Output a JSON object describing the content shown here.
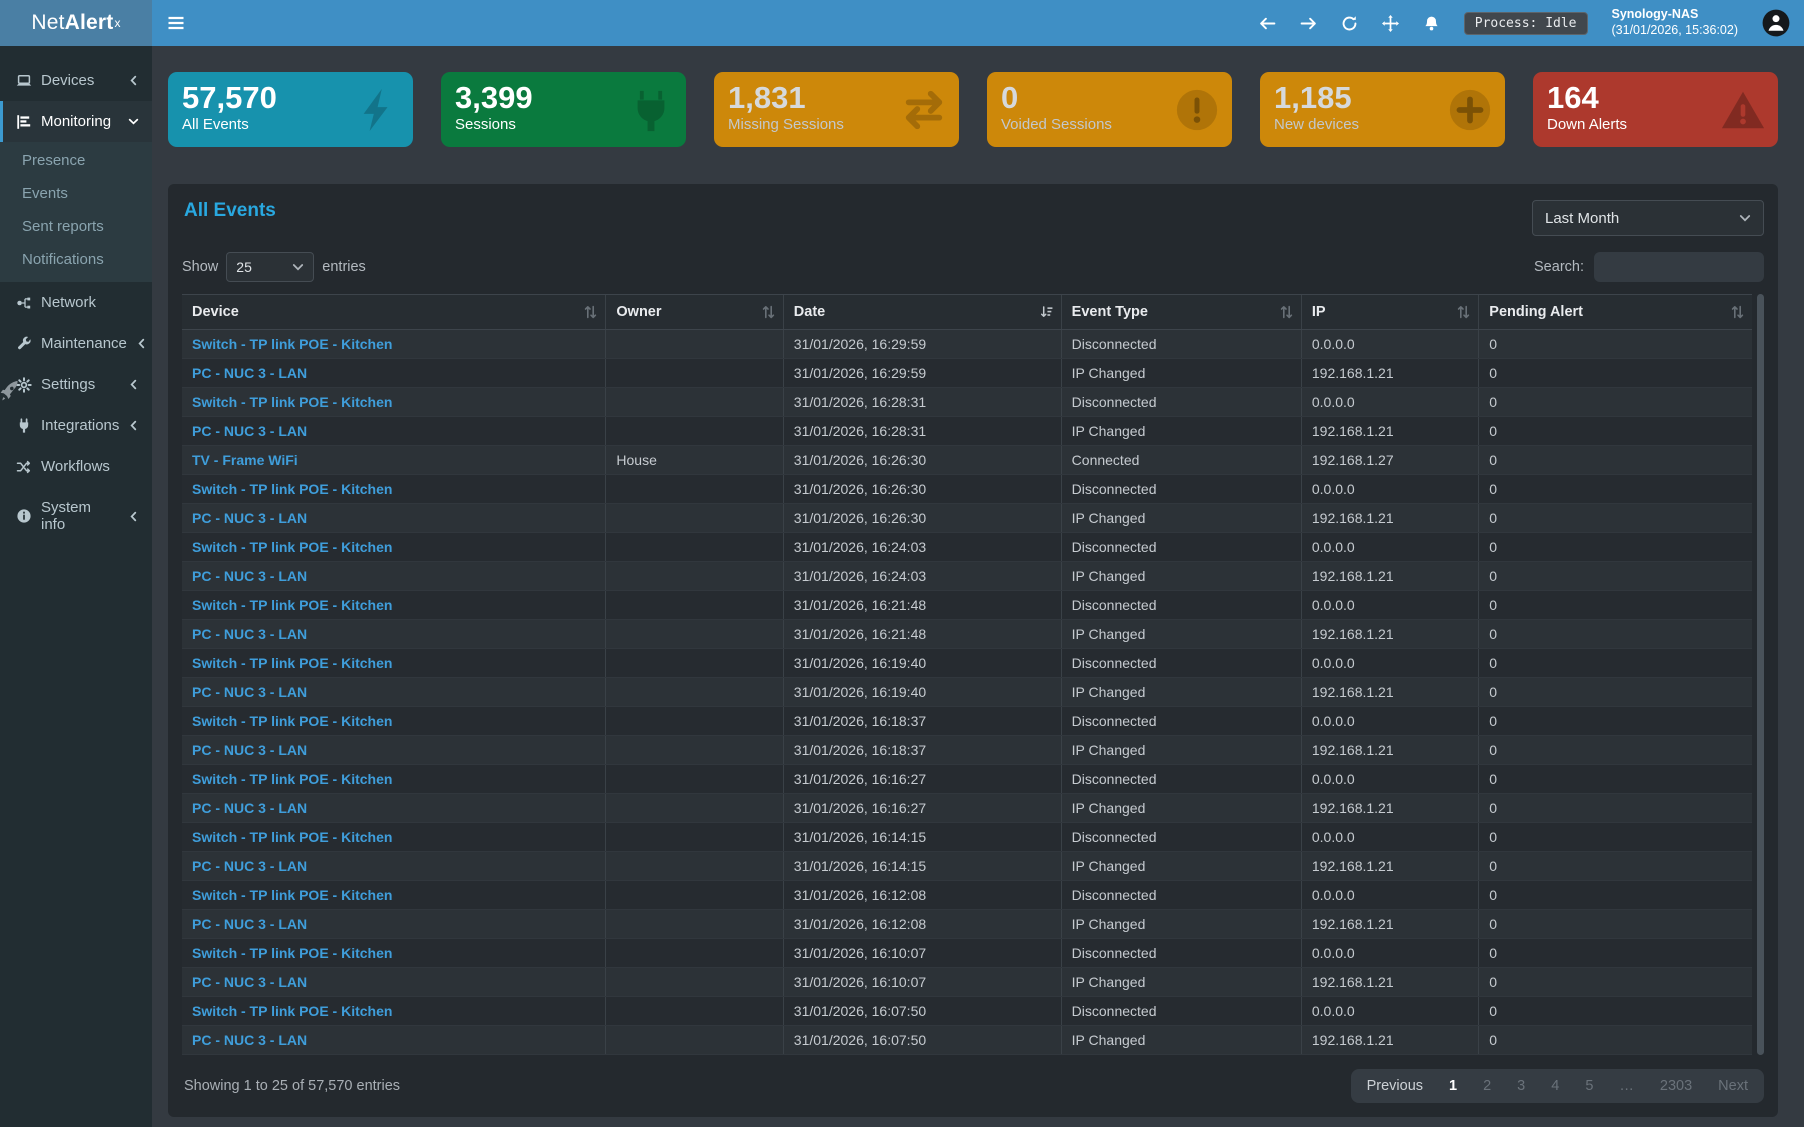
{
  "brand": {
    "prefix": "Net",
    "bold": "Alert",
    "sup": "x"
  },
  "header": {
    "process_badge": "Process: Idle",
    "host": "Synology-NAS",
    "timestamp": "(31/01/2026, 15:36:02)"
  },
  "sidebar": {
    "items": [
      {
        "label": "Devices"
      },
      {
        "label": "Monitoring",
        "children": [
          {
            "label": "Presence"
          },
          {
            "label": "Events"
          },
          {
            "label": "Sent reports"
          },
          {
            "label": "Notifications"
          }
        ]
      },
      {
        "label": "Network"
      },
      {
        "label": "Maintenance"
      },
      {
        "label": "Settings"
      },
      {
        "label": "Integrations"
      },
      {
        "label": "Workflows"
      },
      {
        "label": "System info"
      }
    ]
  },
  "cards": [
    {
      "value": "57,570",
      "label": "All Events",
      "color": "#1792ad",
      "icon": "bolt-icon"
    },
    {
      "value": "3,399",
      "label": "Sessions",
      "color": "#0a7a3e",
      "icon": "plug-icon"
    },
    {
      "value": "1,831",
      "label": "Missing Sessions",
      "color": "#cd880a",
      "icon": "exchange-icon"
    },
    {
      "value": "0",
      "label": "Voided Sessions",
      "color": "#cd880a",
      "icon": "exclamation-circle-icon"
    },
    {
      "value": "1,185",
      "label": "New devices",
      "color": "#cd880a",
      "icon": "plus-circle-icon"
    },
    {
      "value": "164",
      "label": "Down Alerts",
      "color": "#ad392d",
      "icon": "warning-triangle-icon"
    }
  ],
  "panel": {
    "title": "All Events",
    "period_selected": "Last Month",
    "length_menu": {
      "show": "Show",
      "selected": "25",
      "entries": "entries"
    },
    "search_label": "Search:",
    "search_value": "",
    "table": {
      "columns": [
        "Device",
        "Owner",
        "Date",
        "Event Type",
        "IP",
        "Pending Alert"
      ],
      "sorted_column": "Date",
      "rows": [
        [
          "Switch - TP link POE - Kitchen",
          "",
          "31/01/2026, 16:29:59",
          "Disconnected",
          "0.0.0.0",
          "0"
        ],
        [
          "PC - NUC 3 - LAN",
          "",
          "31/01/2026, 16:29:59",
          "IP Changed",
          "192.168.1.21",
          "0"
        ],
        [
          "Switch - TP link POE - Kitchen",
          "",
          "31/01/2026, 16:28:31",
          "Disconnected",
          "0.0.0.0",
          "0"
        ],
        [
          "PC - NUC 3 - LAN",
          "",
          "31/01/2026, 16:28:31",
          "IP Changed",
          "192.168.1.21",
          "0"
        ],
        [
          "TV - Frame WiFi",
          "House",
          "31/01/2026, 16:26:30",
          "Connected",
          "192.168.1.27",
          "0"
        ],
        [
          "Switch - TP link POE - Kitchen",
          "",
          "31/01/2026, 16:26:30",
          "Disconnected",
          "0.0.0.0",
          "0"
        ],
        [
          "PC - NUC 3 - LAN",
          "",
          "31/01/2026, 16:26:30",
          "IP Changed",
          "192.168.1.21",
          "0"
        ],
        [
          "Switch - TP link POE - Kitchen",
          "",
          "31/01/2026, 16:24:03",
          "Disconnected",
          "0.0.0.0",
          "0"
        ],
        [
          "PC - NUC 3 - LAN",
          "",
          "31/01/2026, 16:24:03",
          "IP Changed",
          "192.168.1.21",
          "0"
        ],
        [
          "Switch - TP link POE - Kitchen",
          "",
          "31/01/2026, 16:21:48",
          "Disconnected",
          "0.0.0.0",
          "0"
        ],
        [
          "PC - NUC 3 - LAN",
          "",
          "31/01/2026, 16:21:48",
          "IP Changed",
          "192.168.1.21",
          "0"
        ],
        [
          "Switch - TP link POE - Kitchen",
          "",
          "31/01/2026, 16:19:40",
          "Disconnected",
          "0.0.0.0",
          "0"
        ],
        [
          "PC - NUC 3 - LAN",
          "",
          "31/01/2026, 16:19:40",
          "IP Changed",
          "192.168.1.21",
          "0"
        ],
        [
          "Switch - TP link POE - Kitchen",
          "",
          "31/01/2026, 16:18:37",
          "Disconnected",
          "0.0.0.0",
          "0"
        ],
        [
          "PC - NUC 3 - LAN",
          "",
          "31/01/2026, 16:18:37",
          "IP Changed",
          "192.168.1.21",
          "0"
        ],
        [
          "Switch - TP link POE - Kitchen",
          "",
          "31/01/2026, 16:16:27",
          "Disconnected",
          "0.0.0.0",
          "0"
        ],
        [
          "PC - NUC 3 - LAN",
          "",
          "31/01/2026, 16:16:27",
          "IP Changed",
          "192.168.1.21",
          "0"
        ],
        [
          "Switch - TP link POE - Kitchen",
          "",
          "31/01/2026, 16:14:15",
          "Disconnected",
          "0.0.0.0",
          "0"
        ],
        [
          "PC - NUC 3 - LAN",
          "",
          "31/01/2026, 16:14:15",
          "IP Changed",
          "192.168.1.21",
          "0"
        ],
        [
          "Switch - TP link POE - Kitchen",
          "",
          "31/01/2026, 16:12:08",
          "Disconnected",
          "0.0.0.0",
          "0"
        ],
        [
          "PC - NUC 3 - LAN",
          "",
          "31/01/2026, 16:12:08",
          "IP Changed",
          "192.168.1.21",
          "0"
        ],
        [
          "Switch - TP link POE - Kitchen",
          "",
          "31/01/2026, 16:10:07",
          "Disconnected",
          "0.0.0.0",
          "0"
        ],
        [
          "PC - NUC 3 - LAN",
          "",
          "31/01/2026, 16:10:07",
          "IP Changed",
          "192.168.1.21",
          "0"
        ],
        [
          "Switch - TP link POE - Kitchen",
          "",
          "31/01/2026, 16:07:50",
          "Disconnected",
          "0.0.0.0",
          "0"
        ],
        [
          "PC - NUC 3 - LAN",
          "",
          "31/01/2026, 16:07:50",
          "IP Changed",
          "192.168.1.21",
          "0"
        ]
      ]
    },
    "summary": "Showing 1 to 25 of 57,570 entries",
    "pagination": {
      "previous": "Previous",
      "pages": [
        "1",
        "2",
        "3",
        "4",
        "5",
        "…",
        "2303"
      ],
      "active_page": "1",
      "next": "Next"
    }
  }
}
